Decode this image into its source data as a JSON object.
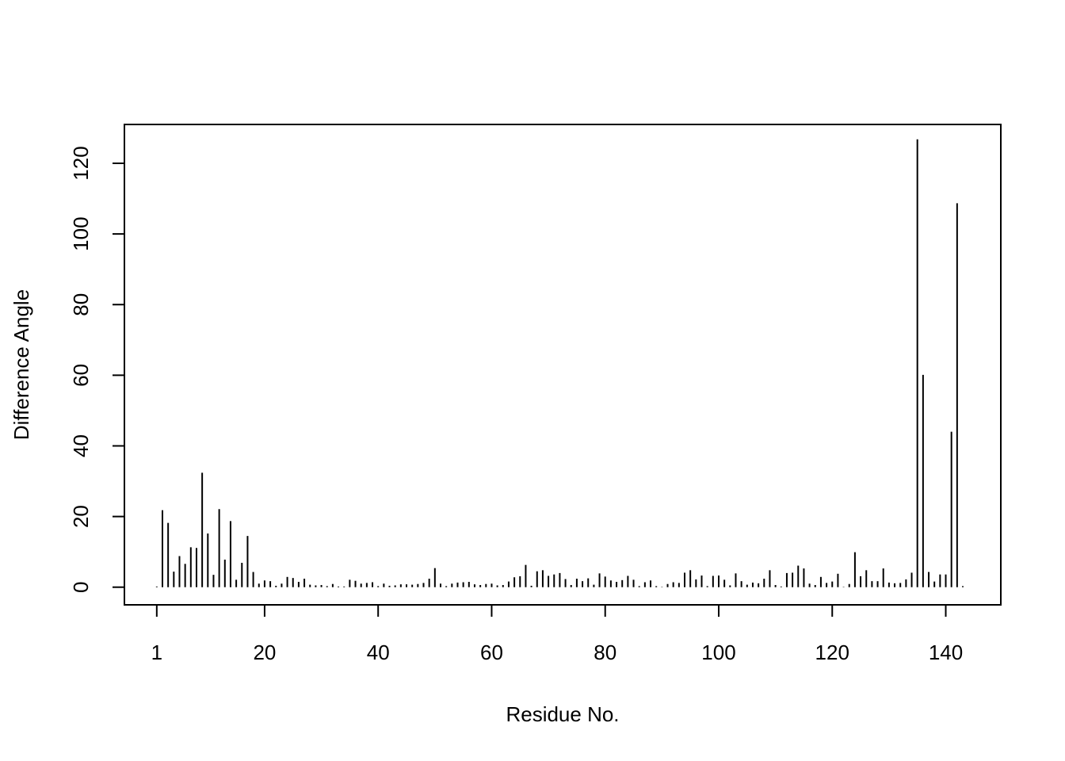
{
  "chart_data": {
    "type": "bar",
    "xlabel": "Residue No.",
    "ylabel": "Difference Angle",
    "xlim": [
      -4.7,
      149.7
    ],
    "ylim": [
      -5,
      131
    ],
    "x_ticks": [
      1,
      20,
      40,
      60,
      80,
      100,
      120,
      140
    ],
    "y_ticks": [
      0,
      20,
      40,
      60,
      80,
      100,
      120
    ],
    "grid": false,
    "legend": "none",
    "color": "#000000",
    "x": [
      1,
      2,
      3,
      4,
      5,
      6,
      7,
      8,
      9,
      10,
      11,
      12,
      13,
      14,
      15,
      16,
      17,
      18,
      19,
      20,
      21,
      22,
      23,
      24,
      25,
      26,
      27,
      28,
      29,
      30,
      31,
      32,
      33,
      34,
      35,
      36,
      37,
      38,
      39,
      40,
      41,
      42,
      43,
      44,
      45,
      46,
      47,
      48,
      49,
      50,
      51,
      52,
      53,
      54,
      55,
      56,
      57,
      58,
      59,
      60,
      61,
      62,
      63,
      64,
      65,
      66,
      67,
      68,
      69,
      70,
      71,
      72,
      73,
      74,
      75,
      76,
      77,
      78,
      79,
      80,
      81,
      82,
      83,
      84,
      85,
      86,
      87,
      88,
      89,
      90,
      91,
      92,
      93,
      94,
      95,
      96,
      97,
      98,
      99,
      100,
      101,
      102,
      103,
      104,
      105,
      106,
      107,
      108,
      109,
      110,
      111,
      112,
      113,
      114,
      115,
      116,
      117,
      118,
      119,
      120,
      121,
      122,
      123,
      124,
      125,
      126,
      127,
      128,
      129,
      130,
      131,
      132,
      133,
      134,
      135,
      136,
      137,
      138,
      139,
      140,
      141,
      142,
      143
    ],
    "values": [
      0.2,
      21.8,
      18.2,
      4.4,
      8.8,
      6.6,
      11.3,
      11.1,
      32.4,
      15.2,
      3.5,
      22.1,
      7.8,
      18.7,
      2.1,
      6.9,
      14.5,
      4.3,
      1.0,
      1.9,
      1.7,
      0.4,
      1.0,
      2.9,
      2.6,
      1.5,
      2.4,
      0.7,
      0.5,
      0.6,
      0.3,
      0.9,
      0.2,
      0.2,
      2.1,
      1.8,
      1.0,
      1.2,
      1.4,
      0.3,
      1.0,
      0.4,
      0.5,
      0.8,
      0.8,
      0.7,
      0.9,
      1.2,
      2.4,
      5.4,
      1.0,
      0.3,
      1.0,
      1.3,
      1.4,
      1.5,
      0.8,
      0.6,
      0.9,
      1.0,
      0.5,
      0.6,
      1.6,
      2.8,
      3.1,
      6.3,
      0.4,
      4.5,
      4.8,
      3.2,
      3.6,
      4.0,
      2.3,
      0.6,
      2.4,
      1.7,
      2.5,
      0.7,
      3.9,
      3.0,
      1.9,
      1.5,
      2.0,
      3.2,
      2.1,
      0.3,
      1.4,
      1.9,
      0.3,
      0.1,
      0.9,
      1.4,
      1.2,
      4.1,
      4.8,
      2.2,
      3.3,
      0.3,
      3.2,
      3.3,
      2.1,
      0.5,
      3.9,
      1.7,
      0.7,
      1.3,
      1.1,
      2.4,
      4.8,
      0.6,
      0.2,
      4.0,
      4.1,
      6.1,
      5.3,
      1.0,
      0.6,
      2.9,
      1.2,
      1.6,
      3.8,
      0.1,
      0.9,
      9.9,
      3.1,
      4.8,
      1.7,
      1.7,
      5.3,
      1.3,
      1.1,
      1.2,
      2.2,
      4.1,
      126.8,
      60.1,
      4.3,
      1.6,
      3.6,
      3.6,
      44.0,
      108.7,
      0.3
    ]
  }
}
